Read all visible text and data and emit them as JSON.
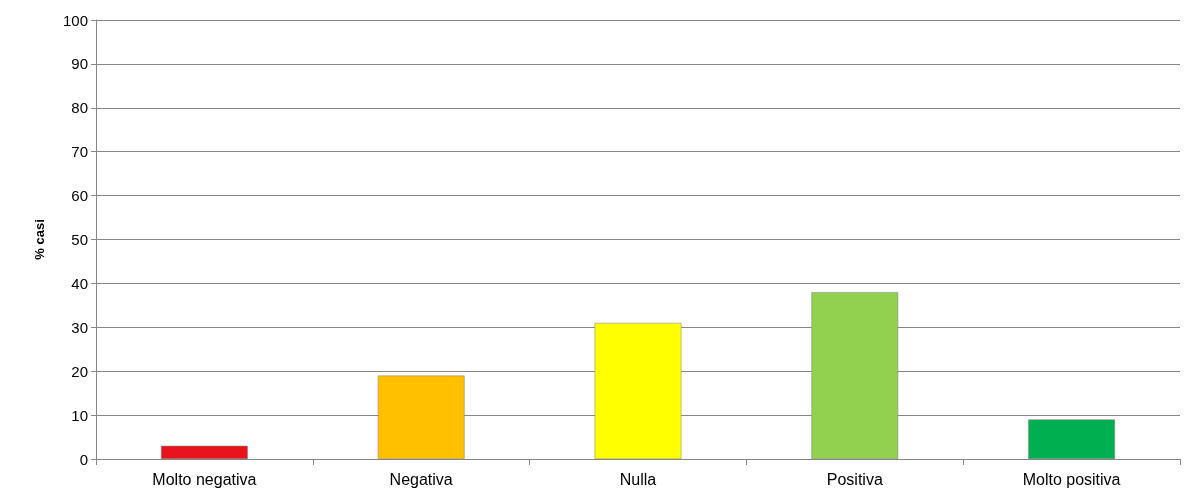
{
  "chart_data": {
    "type": "bar",
    "ylabel": "% casi",
    "categories": [
      "Molto negativa",
      "Negativa",
      "Nulla",
      "Positiva",
      "Molto positiva"
    ],
    "values": [
      3,
      19,
      31,
      38,
      9
    ],
    "colors": [
      "#e8141c",
      "#ffc000",
      "#ffff00",
      "#92d050",
      "#00b050"
    ],
    "ylim": [
      0,
      100
    ],
    "yticks": [
      0,
      10,
      20,
      30,
      40,
      50,
      60,
      70,
      80,
      90,
      100
    ],
    "grid": "y"
  }
}
